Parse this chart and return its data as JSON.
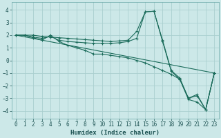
{
  "xlabel": "Humidex (Indice chaleur)",
  "bg_color": "#cce8e8",
  "grid_color": "#aacfcf",
  "line_color": "#1a6b5a",
  "xlim": [
    -0.5,
    23.5
  ],
  "ylim": [
    -4.6,
    4.6
  ],
  "xticks": [
    0,
    1,
    2,
    3,
    4,
    5,
    6,
    7,
    8,
    9,
    10,
    11,
    12,
    13,
    14,
    15,
    16,
    17,
    18,
    19,
    20,
    21,
    22,
    23
  ],
  "yticks": [
    -4,
    -3,
    -2,
    -1,
    0,
    1,
    2,
    3,
    4
  ],
  "line1_x": [
    0,
    1,
    2,
    3,
    4,
    5,
    6,
    7,
    8,
    9,
    10,
    11,
    12,
    13,
    14,
    15,
    16,
    17,
    18,
    19,
    20,
    21,
    22,
    23
  ],
  "line1_y": [
    2.0,
    2.0,
    2.0,
    1.9,
    1.85,
    1.8,
    1.75,
    1.7,
    1.65,
    1.6,
    1.55,
    1.5,
    1.55,
    1.6,
    2.3,
    3.85,
    3.9,
    1.5,
    -0.85,
    -1.5,
    -3.0,
    -2.7,
    -3.9,
    -1.0
  ],
  "line2_x": [
    0,
    1,
    2,
    3,
    4,
    5,
    6,
    7,
    8,
    9,
    10,
    11,
    12,
    13,
    14,
    15,
    16,
    17,
    18,
    19,
    20,
    21,
    22,
    23
  ],
  "line2_y": [
    2.0,
    2.0,
    1.85,
    1.75,
    1.9,
    1.6,
    1.5,
    1.45,
    1.4,
    1.35,
    1.35,
    1.35,
    1.4,
    1.5,
    1.75,
    3.85,
    3.9,
    1.6,
    -0.8,
    -1.4,
    -3.0,
    -2.8,
    -3.9,
    -1.0
  ],
  "line3_x": [
    0,
    1,
    2,
    3,
    4,
    5,
    6,
    7,
    8,
    9,
    10,
    11,
    12,
    13,
    14,
    15,
    16,
    17,
    18,
    19,
    20,
    21,
    22,
    23
  ],
  "line3_y": [
    2.0,
    2.0,
    1.8,
    1.6,
    2.0,
    1.5,
    1.2,
    1.0,
    0.8,
    0.5,
    0.5,
    0.4,
    0.3,
    0.2,
    0.0,
    -0.2,
    -0.5,
    -0.8,
    -1.1,
    -1.5,
    -3.1,
    -3.3,
    -3.9,
    -1.0
  ],
  "line4_x": [
    0,
    23
  ],
  "line4_y": [
    2.0,
    -1.0
  ],
  "tick_fontsize": 5.5,
  "xlabel_fontsize": 6.5
}
